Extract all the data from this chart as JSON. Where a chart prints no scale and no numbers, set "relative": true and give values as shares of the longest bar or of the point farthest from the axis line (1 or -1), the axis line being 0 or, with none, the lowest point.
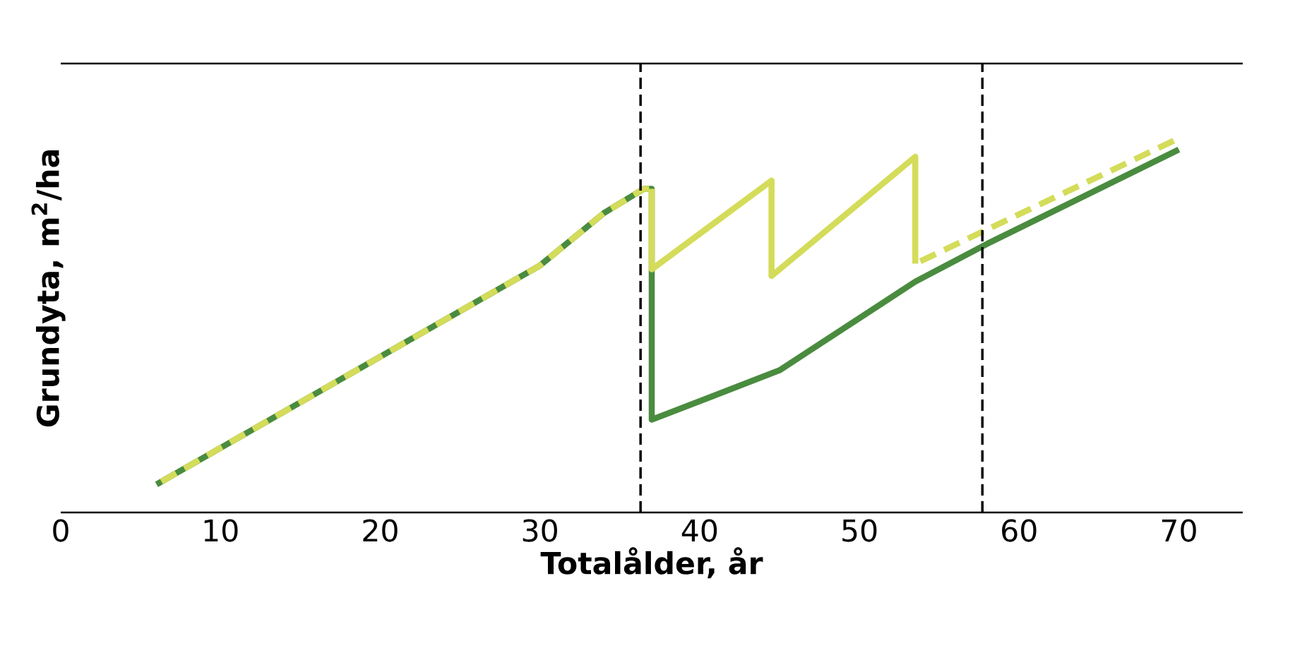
{
  "chart_data": {
    "type": "line",
    "xlabel": "**Totalålder, år**",
    "ylabel": "**Grundyta, m$^{2}$/ha**",
    "relative": true,
    "xlim": [
      0,
      74
    ],
    "xticks": [
      0,
      10,
      20,
      30,
      40,
      50,
      60,
      70
    ],
    "marker": "none",
    "series": [
      {
        "color": "#4a8c3f",
        "line_style": "solid",
        "x": [
          6,
          30,
          34,
          36.5,
          37,
          37,
          45,
          53.5,
          58,
          70
        ],
        "values": [
          0.075,
          0.66,
          0.8,
          0.865,
          0.865,
          0.248,
          0.38,
          0.617,
          0.718,
          0.97
        ]
      },
      {
        "color": "#d4dc5a",
        "line_style": "dashed",
        "x": [
          6,
          30,
          34,
          36.5,
          37
        ],
        "values": [
          0.075,
          0.66,
          0.8,
          0.865,
          0.865
        ]
      },
      {
        "color": "#d4dc5a",
        "line_style": "solid",
        "x": [
          37,
          37,
          44.5,
          44.5,
          53.5,
          53.5
        ],
        "values": [
          0.865,
          0.65,
          0.887,
          0.632,
          0.951,
          0.665
        ]
      },
      {
        "color": "#d4dc5a",
        "line_style": "dashed",
        "x": [
          53.5,
          70
        ],
        "values": [
          0.665,
          1.0
        ]
      }
    ],
    "ref_lines": [
      {
        "axis": "x",
        "value": 36.3,
        "color": "#000000",
        "line_style": "dashed"
      },
      {
        "axis": "x",
        "value": 57.7,
        "color": "#000000",
        "line_style": "dashed"
      }
    ]
  }
}
